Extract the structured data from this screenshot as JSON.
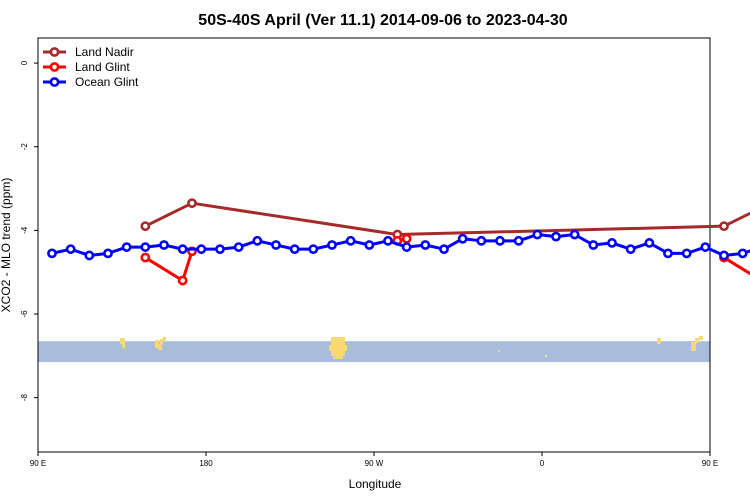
{
  "chart_data": {
    "type": "line",
    "title": "50S-40S April (Ver 11.1)   2014-09-06 to 2023-04-30",
    "xlabel": "Longitude",
    "ylabel": "XCO2 - MLO trend (ppm)",
    "xlim": [
      90,
      450
    ],
    "ylim": [
      -9.3,
      0.6
    ],
    "x_ticks": [
      {
        "value": 90,
        "label": "90 E"
      },
      {
        "value": 180,
        "label": "180"
      },
      {
        "value": 270,
        "label": "90 W"
      },
      {
        "value": 360,
        "label": "0"
      },
      {
        "value": 450,
        "label": "90 E"
      },
      {
        "value": 540,
        "label": "180"
      }
    ],
    "y_ticks": [
      0,
      -2,
      -4,
      -6,
      -8
    ],
    "grid": false,
    "legend_position": "top-left",
    "land_band": {
      "color": "#a8bddd",
      "land_color": "#f7d872",
      "y_range": [
        -7.15,
        -6.65
      ]
    },
    "series": [
      {
        "name": "Land Nadir",
        "color": "#a52a2a",
        "x": [
          147.5,
          172.5,
          282.5,
          457.5,
          482.5
        ],
        "y": [
          -3.9,
          -3.35,
          -4.1,
          -3.9,
          -3.35
        ]
      },
      {
        "name": "Land Glint",
        "color": "#ff0000",
        "x": [
          147.5,
          167.5,
          172.5,
          282.5,
          287.5,
          457.5,
          477.5,
          482.5
        ],
        "y": [
          -4.65,
          -5.2,
          -4.5,
          -4.25,
          -4.2,
          -4.65,
          -5.2,
          -4.5
        ],
        "segments": [
          [
            0,
            1,
            2
          ],
          [
            3,
            4
          ],
          [
            5,
            6,
            7
          ]
        ]
      },
      {
        "name": "Ocean Glint",
        "color": "#0000ff",
        "x": [
          97.5,
          107.5,
          117.5,
          127.5,
          137.5,
          147.5,
          157.5,
          167.5,
          177.5,
          187.5,
          197.5,
          207.5,
          217.5,
          227.5,
          237.5,
          247.5,
          257.5,
          267.5,
          277.5,
          287.5,
          297.5,
          307.5,
          317.5,
          327.5,
          337.5,
          347.5,
          357.5,
          367.5,
          377.5,
          387.5,
          397.5,
          407.5,
          417.5,
          427.5,
          437.5,
          447.5,
          457.5,
          467.5,
          477.5,
          485.0
        ],
        "y": [
          -4.55,
          -4.45,
          -4.6,
          -4.55,
          -4.4,
          -4.4,
          -4.35,
          -4.45,
          -4.45,
          -4.45,
          -4.4,
          -4.25,
          -4.35,
          -4.45,
          -4.45,
          -4.35,
          -4.25,
          -4.35,
          -4.25,
          -4.4,
          -4.35,
          -4.45,
          -4.2,
          -4.25,
          -4.25,
          -4.25,
          -4.1,
          -4.15,
          -4.1,
          -4.35,
          -4.3,
          -4.45,
          -4.3,
          -4.55,
          -4.55,
          -4.4,
          -4.6,
          -4.55,
          -4.4,
          -4.45
        ]
      }
    ]
  }
}
